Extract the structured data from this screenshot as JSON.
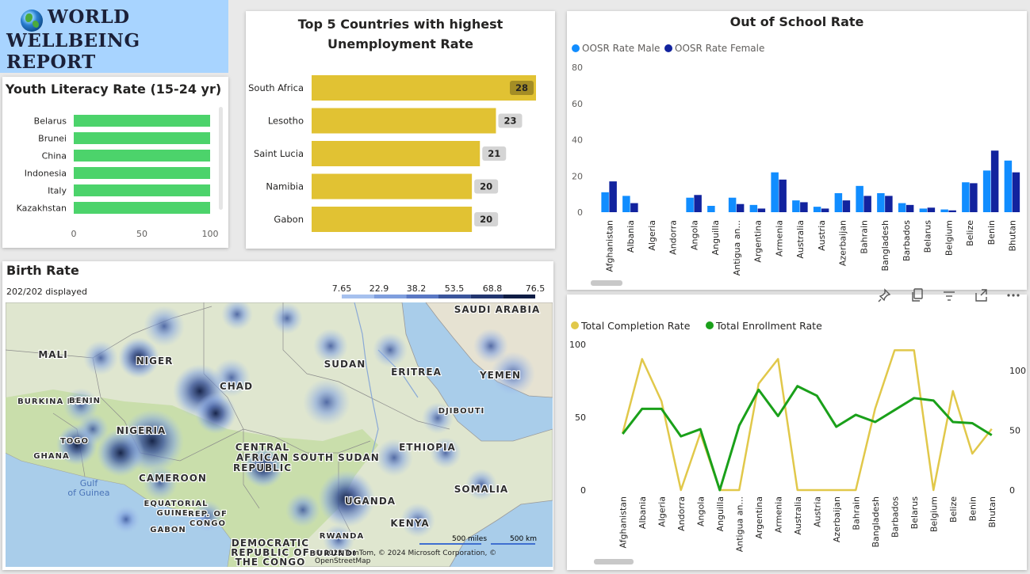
{
  "title": {
    "line1": "WORLD",
    "line2": "WELLBEING REPORT"
  },
  "literacy": {
    "title": "Youth Literacy Rate (15-24 yr)",
    "chart_data": {
      "type": "bar",
      "orientation": "horizontal",
      "title": "Youth Literacy Rate (15-24 yr)",
      "categories": [
        "Belarus",
        "Brunei",
        "China",
        "Indonesia",
        "Italy",
        "Kazakhstan"
      ],
      "values": [
        100,
        100,
        100,
        100,
        100,
        100
      ],
      "xlim": [
        0,
        100
      ],
      "ticks": [
        "0",
        "50",
        "100"
      ],
      "color": "#4cd36b"
    }
  },
  "unemployment": {
    "title_line1": "Top 5 Countries with highest",
    "title_line2": "Unemployment Rate",
    "chart_data": {
      "type": "bar",
      "orientation": "horizontal",
      "title": "Top 5 Countries with highest Unemployment Rate",
      "categories": [
        "South Africa",
        "Lesotho",
        "Saint Lucia",
        "Namibia",
        "Gabon"
      ],
      "values": [
        28,
        23,
        21,
        20,
        20
      ],
      "labels": [
        "28",
        "23",
        "21",
        "20",
        "20"
      ],
      "color": "#e1c233"
    }
  },
  "oosr": {
    "title": "Out of School Rate",
    "legend": [
      "OOSR Rate Male",
      "OOSR Rate Female"
    ],
    "chart_data": {
      "type": "bar",
      "title": "Out of School Rate",
      "categories": [
        "Afghanistan",
        "Albania",
        "Algeria",
        "Andorra",
        "Angola",
        "Anguilla",
        "Antigua an...",
        "Argentina",
        "Armenia",
        "Australia",
        "Austria",
        "Azerbaijan",
        "Bahrain",
        "Bangladesh",
        "Barbados",
        "Belarus",
        "Belgium",
        "Belize",
        "Benin",
        "Bhutan"
      ],
      "series": [
        {
          "name": "OOSR Rate Male",
          "color": "#118dff",
          "values": [
            11,
            9,
            0,
            0,
            8,
            3.5,
            8,
            4,
            22,
            6.5,
            3,
            10.5,
            14.5,
            10.5,
            5,
            2,
            1.5,
            16.5,
            23,
            28.5
          ]
        },
        {
          "name": "OOSR Rate Female",
          "color": "#12239e",
          "values": [
            17,
            5,
            0,
            0,
            9.5,
            0,
            4.5,
            2,
            18,
            5.5,
            2,
            6.5,
            9,
            9,
            4,
            2.5,
            1,
            16,
            34,
            22
          ]
        }
      ],
      "ylim": [
        0,
        80
      ],
      "yticks": [
        "0",
        "20",
        "40",
        "60",
        "80"
      ],
      "legend_position": "top-left"
    }
  },
  "rates": {
    "toolbar_icons": [
      "pin-icon",
      "copy-icon",
      "filter-icon",
      "focus-icon",
      "more-icon"
    ],
    "legend": [
      "Total Completion Rate",
      "Total Enrollment Rate"
    ],
    "chart_data": {
      "type": "line",
      "categories": [
        "Afghanistan",
        "Albania",
        "Algeria",
        "Andorra",
        "Angola",
        "Anguilla",
        "Antigua an...",
        "Argentina",
        "Armenia",
        "Australia",
        "Austria",
        "Azerbaijan",
        "Bahrain",
        "Bangladesh",
        "Barbados",
        "Belarus",
        "Belgium",
        "Belize",
        "Benin",
        "Bhutan"
      ],
      "series": [
        {
          "name": "Total Completion Rate",
          "axis": "left",
          "color": "#e1c84a",
          "values": [
            39,
            90,
            61,
            0,
            39,
            0,
            0,
            73,
            90,
            0,
            0,
            0,
            0,
            56,
            96,
            96,
            0,
            68,
            25,
            42
          ]
        },
        {
          "name": "Total Enrollment Rate",
          "axis": "right",
          "color": "#1aa01a",
          "values": [
            47,
            68,
            68,
            45,
            51,
            0,
            54,
            84,
            62,
            87,
            79,
            53,
            63,
            57,
            67,
            77,
            75,
            57,
            56,
            46
          ]
        }
      ],
      "ylim_left": [
        0,
        100
      ],
      "yticks_left": [
        "0",
        "50",
        "100"
      ],
      "yticks_right": [
        "0",
        "50",
        "100"
      ],
      "legend_position": "top-left"
    }
  },
  "birth": {
    "title": "Birth Rate",
    "displayed": "202/202 displayed",
    "legend_ticks": [
      "7.65",
      "22.9",
      "38.2",
      "53.5",
      "68.8",
      "76.5"
    ],
    "legend_colors": [
      "#a6c1ee",
      "#7f9fde",
      "#5a78c4",
      "#3a559c",
      "#223670",
      "#0e1c44"
    ],
    "map_labels": [
      "SAUDI ARABIA",
      "MALI",
      "NIGER",
      "SUDAN",
      "ERITREA",
      "YEMEN",
      "CHAD",
      "BURKINA FASO",
      "BENIN",
      "DJIBOUTI",
      "NIGERIA",
      "TOGO",
      "GHANA",
      "CENTRAL",
      "AFRICAN",
      "REPUBLIC",
      "SOUTH SUDAN",
      "ETHIOPIA",
      "CAMEROON",
      "Gulf",
      "of Guinea",
      "EQUATORIAL",
      "GUINEA",
      "REP. OF",
      "CONGO",
      "GABON",
      "UGANDA",
      "SOMALIA",
      "KENYA",
      "DEMOCRATIC",
      "REPUBLIC OF",
      "THE CONGO",
      "RWANDA",
      "BURUNDI"
    ],
    "scale": {
      "miles": "500 miles",
      "km": "500 km"
    },
    "copyright": "© 2023 TomTom, © 2024 Microsoft Corporation, © OpenStreetMap"
  }
}
